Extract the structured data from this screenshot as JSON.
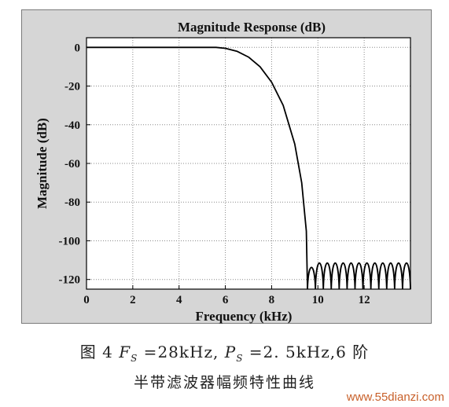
{
  "chart_data": {
    "type": "line",
    "title": "Magnitude Response (dB)",
    "xlabel": "Frequency (kHz)",
    "ylabel": "Magnitude (dB)",
    "xlim": [
      0,
      14
    ],
    "ylim": [
      -125,
      5
    ],
    "x_ticks": [
      "0",
      "2",
      "4",
      "6",
      "8",
      "10",
      "12"
    ],
    "y_ticks": [
      "0",
      "-20",
      "-40",
      "-60",
      "-80",
      "-100",
      "-120"
    ],
    "grid": true,
    "series": [
      {
        "color": "#000000",
        "points": [
          [
            0,
            0
          ],
          [
            1,
            0
          ],
          [
            2,
            0
          ],
          [
            3,
            0
          ],
          [
            4,
            0
          ],
          [
            5,
            0
          ],
          [
            5.6,
            0
          ],
          [
            6.0,
            -0.5
          ],
          [
            6.5,
            -2
          ],
          [
            7.0,
            -5
          ],
          [
            7.5,
            -10
          ],
          [
            8.0,
            -18
          ],
          [
            8.5,
            -30
          ],
          [
            9.0,
            -50
          ],
          [
            9.3,
            -70
          ],
          [
            9.5,
            -95
          ],
          [
            9.55,
            -125
          ]
        ],
        "stopband_ripple": {
          "start_khz": 9.55,
          "end_khz": 14,
          "peak_db": -107,
          "null_db": -125,
          "first_lobe_peak_db": -110
        }
      }
    ]
  },
  "caption": {
    "line1": "图 4   F_S =28kHz, P_S =2. 5kHz,6 阶",
    "line2": "半带滤波器幅频特性曲线"
  },
  "watermark": "www.55dianzi.com"
}
